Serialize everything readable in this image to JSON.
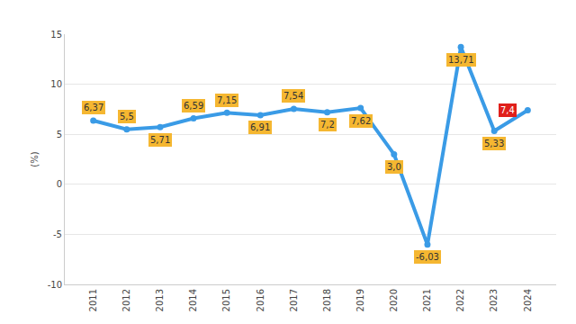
{
  "chart_data": {
    "type": "line",
    "y_label": "(%)",
    "categories": [
      "2011",
      "2012",
      "2013",
      "2014",
      "2015",
      "2016",
      "2017",
      "2018",
      "2019",
      "2020",
      "2021",
      "2022",
      "2023",
      "2024"
    ],
    "values": [
      6.37,
      5.5,
      5.71,
      6.59,
      7.15,
      6.91,
      7.54,
      7.2,
      7.62,
      3.0,
      -6.03,
      13.71,
      5.33,
      7.4
    ],
    "value_labels": [
      "6,37",
      "5,5",
      "5,71",
      "6,59",
      "7,15",
      "6,91",
      "7,54",
      "7,2",
      "7,62",
      "3,0",
      "-6,03",
      "13,71",
      "5,33",
      "7,4"
    ],
    "color": "#3a9be6",
    "colors": [
      "#f5b731",
      "#f5b731",
      "#f5b731",
      "#f5b731",
      "#f5b731",
      "#f5b731",
      "#f5b731",
      "#f5b731",
      "#f5b731",
      "#f5b731",
      "#f5b731",
      "#f5b731",
      "#f5b731",
      "#e0201b"
    ],
    "marker": "circle",
    "data_labels": true,
    "ylim": [
      -10,
      15
    ],
    "yticks": [
      -10,
      -5,
      0,
      5,
      10,
      15
    ],
    "grid": true
  }
}
